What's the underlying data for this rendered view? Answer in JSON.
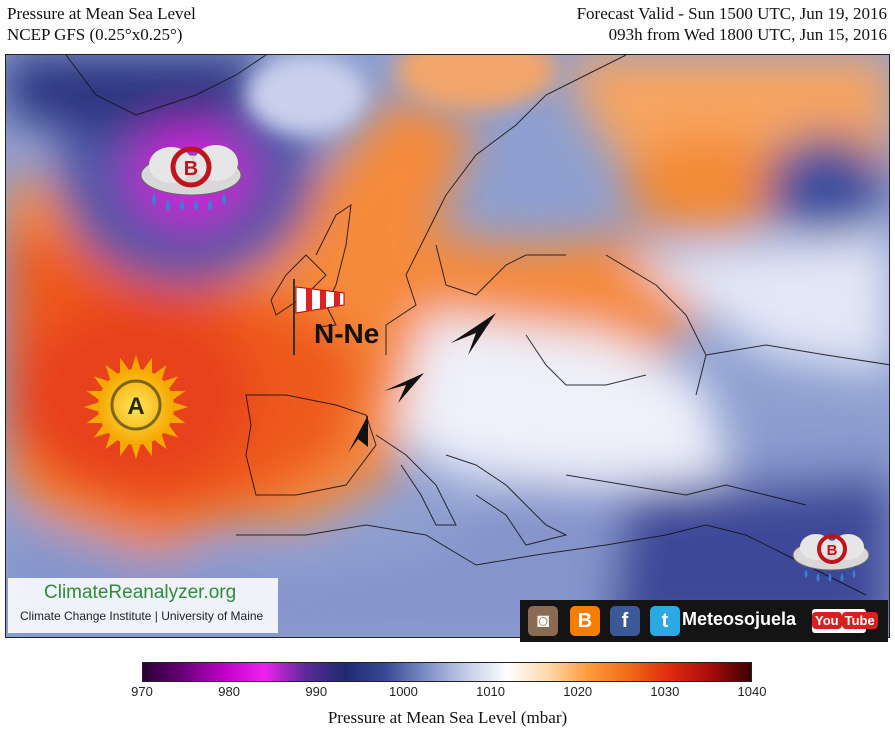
{
  "header": {
    "left_line1": "Pressure at Mean Sea Level",
    "left_line2": "NCEP GFS (0.25°x0.25°)",
    "right_line1": "Forecast Valid - Sun 1500 UTC, Jun 19, 2016",
    "right_line2": "093h from Wed 1800 UTC, Jun 15, 2016"
  },
  "map": {
    "pressure_systems": [
      {
        "symbol": "B",
        "type": "low",
        "region": "southeast of Greenland",
        "icon": "storm-cloud-icon"
      },
      {
        "symbol": "A",
        "type": "high",
        "region": "Azores",
        "icon": "sun-icon"
      },
      {
        "symbol": "B",
        "type": "low",
        "region": "eastern Mediterranean",
        "icon": "storm-cloud-icon"
      }
    ],
    "wind_label": "N-Ne",
    "wind_icon": "windsock-icon",
    "wind_arrows": 3
  },
  "logo": {
    "main": "ClimateReanalyzer.org",
    "sub": "Climate Change Institute | University of Maine"
  },
  "social": {
    "brand": "Meteosojuela",
    "youtube_you": "You",
    "youtube_tube": "Tube",
    "icons": [
      "instagram-icon",
      "blogger-icon",
      "facebook-icon",
      "twitter-icon",
      "youtube-icon"
    ]
  },
  "colorbar": {
    "min": 970,
    "max": 1040,
    "ticks": [
      "970",
      "980",
      "990",
      "1000",
      "1010",
      "1020",
      "1030",
      "1040"
    ],
    "label": "Pressure at Mean Sea Level (mbar)",
    "stops": [
      "#2a0033",
      "#6a007a",
      "#c000c8",
      "#ee22ee",
      "#5a2a9a",
      "#202a6e",
      "#3a4a98",
      "#7e90c6",
      "#c4cce8",
      "#ffffff",
      "#ffd8a8",
      "#ff9a3a",
      "#f06a14",
      "#e02a10",
      "#a80c0c",
      "#3a0000"
    ]
  }
}
